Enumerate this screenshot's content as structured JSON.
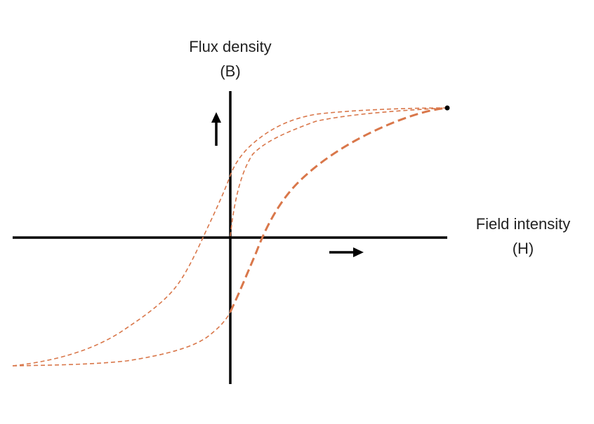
{
  "labels": {
    "y_axis_title": "Flux density",
    "y_axis_symbol": "(B)",
    "x_axis_title": "Field intensity",
    "x_axis_symbol": "(H)"
  },
  "colors": {
    "axis": "#000000",
    "curve": "#d9774a"
  },
  "curves": [
    "initial-magnetization-curve",
    "upper-hysteresis-branch",
    "lower-hysteresis-branch"
  ]
}
